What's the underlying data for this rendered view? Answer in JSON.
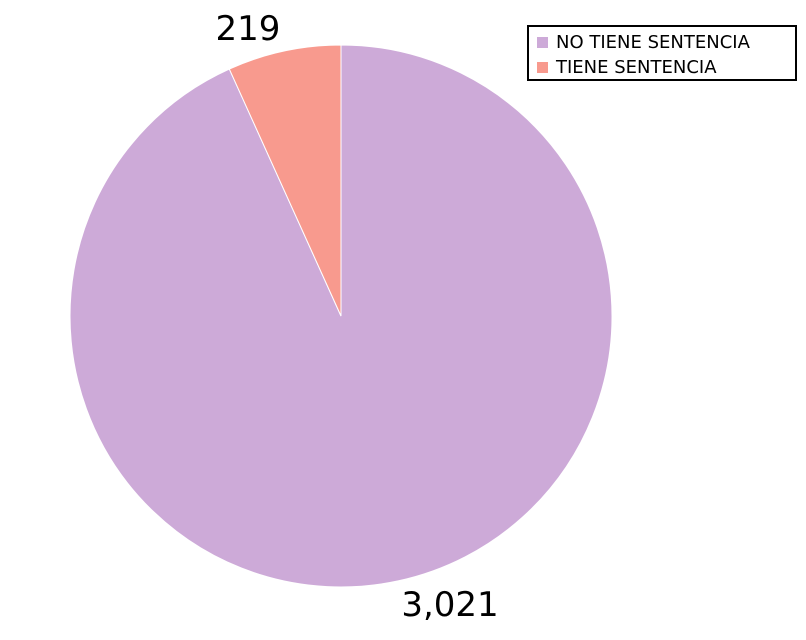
{
  "chart_data": {
    "type": "pie",
    "slices": [
      {
        "label": "NO TIENE SENTENCIA",
        "value": 3021,
        "display": "3,021",
        "color": "#CDAAD8"
      },
      {
        "label": "TIENE SENTENCIA",
        "value": 219,
        "display": "219",
        "color": "#F89A8E"
      }
    ],
    "legend_position": "top-right",
    "slice_order": "counterclockwise from 12 o'clock, first slice on the right side"
  }
}
